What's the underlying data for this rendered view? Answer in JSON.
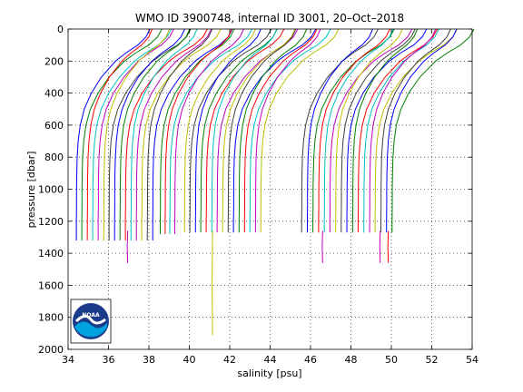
{
  "chart_data": {
    "type": "line",
    "title": "WMO ID 3900748, internal ID 3001, 20–Oct–2018",
    "xlabel": "salinity [psu]",
    "ylabel": "pressure [dbar]",
    "xlim": [
      34,
      54
    ],
    "ylim": [
      0,
      2000
    ],
    "y_reversed": true,
    "grid": true,
    "grid_style": "dotted",
    "x_ticks": [
      "34",
      "36",
      "38",
      "40",
      "42",
      "44",
      "46",
      "48",
      "50",
      "52",
      "54"
    ],
    "y_ticks": [
      "0",
      "200",
      "400",
      "600",
      "800",
      "1000",
      "1200",
      "1400",
      "1600",
      "1800",
      "2000"
    ],
    "profile_colors": [
      "#0000ff",
      "#008000",
      "#ff0000",
      "#00bfbf",
      "#bf00bf",
      "#bfbf00",
      "#404040"
    ],
    "profile_shape": {
      "pressures": [
        0,
        50,
        100,
        150,
        200,
        300,
        400,
        500,
        600,
        700,
        800,
        900,
        1000,
        1100,
        1200,
        1260
      ],
      "salinity_offsets": [
        3.6,
        3.4,
        3.0,
        2.4,
        1.9,
        1.2,
        0.7,
        0.35,
        0.15,
        0.05,
        0.0,
        -0.02,
        -0.03,
        -0.03,
        -0.04,
        -0.04
      ]
    },
    "profile_groups": [
      {
        "start_deep_salinity": 34.45,
        "count": 15,
        "step": 0.27,
        "max_pressure": 1320
      },
      {
        "start_deep_salinity": 38.6,
        "count": 4,
        "step": 0.24,
        "max_pressure": 1280
      },
      {
        "start_deep_salinity": 39.8,
        "count": 15,
        "step": 0.27,
        "max_pressure": 1270
      },
      {
        "start_deep_salinity": 45.6,
        "count": 17,
        "step": 0.28,
        "max_pressure": 1270
      }
    ],
    "deep_tails": [
      {
        "salinity": 36.95,
        "from_pressure": 1260,
        "to_pressure": 1460,
        "color": "#bf00bf"
      },
      {
        "salinity": 41.15,
        "from_pressure": 1260,
        "to_pressure": 1910,
        "color": "#bfbf00"
      },
      {
        "salinity": 46.6,
        "from_pressure": 1260,
        "to_pressure": 1460,
        "color": "#bf00bf"
      },
      {
        "salinity": 49.45,
        "from_pressure": 1260,
        "to_pressure": 1460,
        "color": "#bf00bf"
      },
      {
        "salinity": 49.85,
        "from_pressure": 1260,
        "to_pressure": 1460,
        "color": "#ff0000"
      }
    ]
  },
  "logo": {
    "text": "NOAA"
  }
}
